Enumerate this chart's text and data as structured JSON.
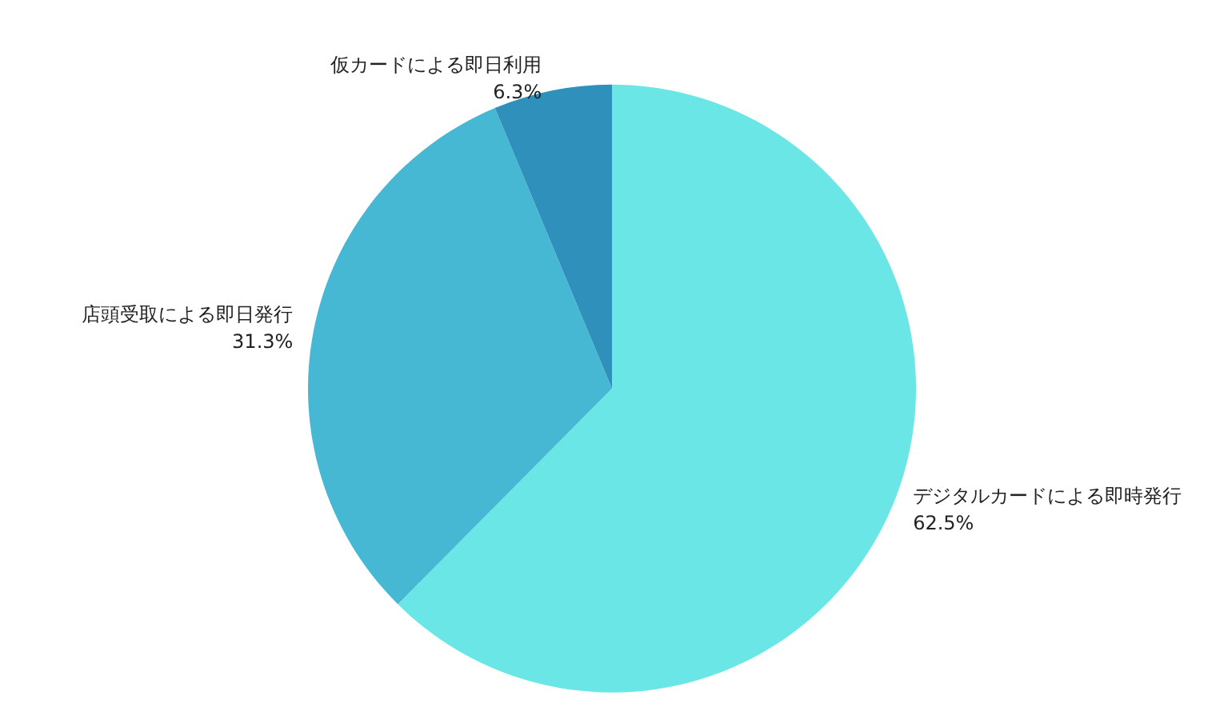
{
  "chart_data": {
    "type": "pie",
    "categories": [
      "デジタルカードによる即時発行",
      "店頭受取による即日発行",
      "仮カードによる即日利用"
    ],
    "values": [
      62.5,
      31.3,
      6.3
    ],
    "colors": [
      "#6ae6e6",
      "#46b8d4",
      "#2e90bb"
    ],
    "value_labels": [
      "62.5%",
      "31.3%",
      "6.3%"
    ],
    "legend": false
  }
}
